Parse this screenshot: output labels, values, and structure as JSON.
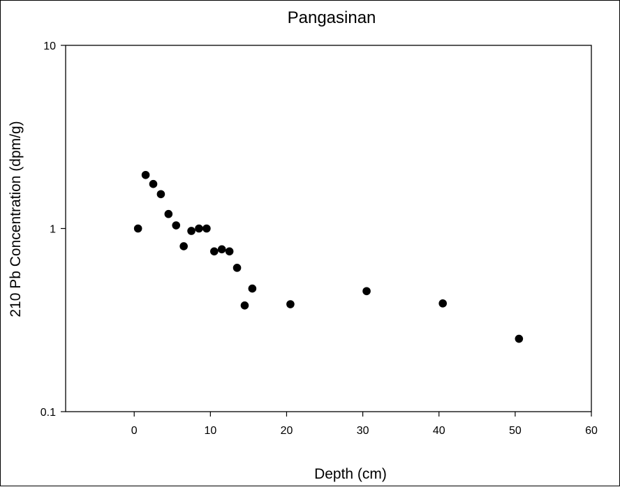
{
  "chart_data": {
    "type": "scatter",
    "title": "Pangasinan",
    "xlabel": "Depth (cm)",
    "ylabel": "210 Pb Concentration (dpm/g)",
    "xlim": [
      -9,
      60
    ],
    "ylim": [
      0.1,
      10
    ],
    "yscale": "log",
    "grid": false,
    "x_ticks": [
      0,
      10,
      20,
      30,
      40,
      50,
      60
    ],
    "x_tick_labels": [
      "0",
      "10",
      "20",
      "30",
      "40",
      "50",
      "60"
    ],
    "y_ticks": [
      0.1,
      1,
      10
    ],
    "y_tick_labels": [
      "0.1",
      "1",
      "10"
    ],
    "marker_color": "#000000",
    "series": [
      {
        "points": [
          {
            "x": 0.5,
            "y": 1.0
          },
          {
            "x": 1.5,
            "y": 1.96
          },
          {
            "x": 2.5,
            "y": 1.75
          },
          {
            "x": 3.5,
            "y": 1.54
          },
          {
            "x": 4.5,
            "y": 1.2
          },
          {
            "x": 5.5,
            "y": 1.04
          },
          {
            "x": 6.5,
            "y": 0.8
          },
          {
            "x": 7.5,
            "y": 0.97
          },
          {
            "x": 8.5,
            "y": 1.0
          },
          {
            "x": 9.5,
            "y": 1.0
          },
          {
            "x": 10.5,
            "y": 0.75
          },
          {
            "x": 11.5,
            "y": 0.77
          },
          {
            "x": 12.5,
            "y": 0.75
          },
          {
            "x": 13.5,
            "y": 0.61
          },
          {
            "x": 14.5,
            "y": 0.38
          },
          {
            "x": 15.5,
            "y": 0.47
          },
          {
            "x": 20.5,
            "y": 0.386
          },
          {
            "x": 30.5,
            "y": 0.455
          },
          {
            "x": 40.5,
            "y": 0.39
          },
          {
            "x": 50.5,
            "y": 0.25
          }
        ]
      }
    ]
  }
}
